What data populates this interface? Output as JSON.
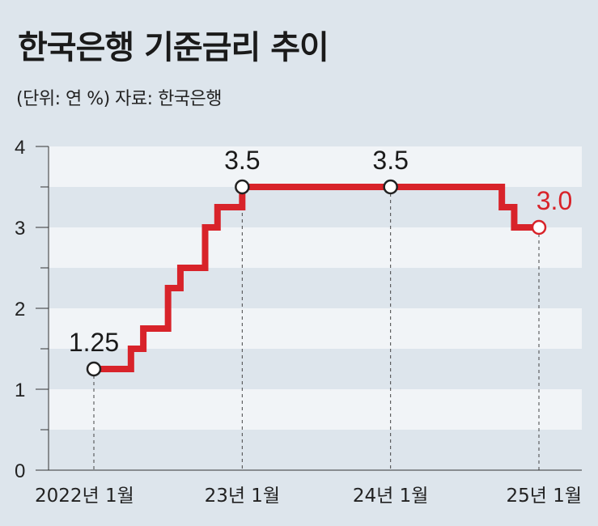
{
  "header": {
    "title": "한국은행 기준금리 추이",
    "subtitle": "(단위: 연 %) 자료: 한국은행"
  },
  "colors": {
    "background": "#dde5ec",
    "band": "#f1f4f7",
    "line": "#d8232a",
    "highlight_label": "#d8232a",
    "text": "#1a1a1a"
  },
  "chart_data": {
    "type": "line",
    "step": true,
    "title": "한국은행 기준금리 추이",
    "unit": "연 %",
    "source": "한국은행",
    "ylim": [
      0,
      4
    ],
    "yticks": [
      "0",
      "1",
      "2",
      "3",
      "4"
    ],
    "x_range": [
      "2022-01",
      "2025-01"
    ],
    "xtick_labels": [
      {
        "x": "2022-01",
        "label": "2022년 1월"
      },
      {
        "x": "2023-01",
        "label": "23년 1월"
      },
      {
        "x": "2024-01",
        "label": "24년 1월"
      },
      {
        "x": "2025-01",
        "label": "25년 1월"
      }
    ],
    "series": [
      {
        "points": [
          {
            "x": "2022-01",
            "y": 1.25
          },
          {
            "x": "2022-04",
            "y": 1.5
          },
          {
            "x": "2022-05",
            "y": 1.75
          },
          {
            "x": "2022-07",
            "y": 2.25
          },
          {
            "x": "2022-08",
            "y": 2.5
          },
          {
            "x": "2022-10",
            "y": 3.0
          },
          {
            "x": "2022-11",
            "y": 3.25
          },
          {
            "x": "2023-01",
            "y": 3.5
          },
          {
            "x": "2024-10",
            "y": 3.25
          },
          {
            "x": "2024-11",
            "y": 3.0
          },
          {
            "x": "2025-01",
            "y": 3.0
          }
        ]
      }
    ],
    "annotations": [
      {
        "x": "2022-01",
        "y": 1.25,
        "label": "1.25",
        "highlight": false
      },
      {
        "x": "2023-01",
        "y": 3.5,
        "label": "3.5",
        "highlight": false
      },
      {
        "x": "2024-01",
        "y": 3.5,
        "label": "3.5",
        "highlight": false
      },
      {
        "x": "2025-01",
        "y": 3.0,
        "label": "3.0",
        "highlight": true
      }
    ]
  }
}
